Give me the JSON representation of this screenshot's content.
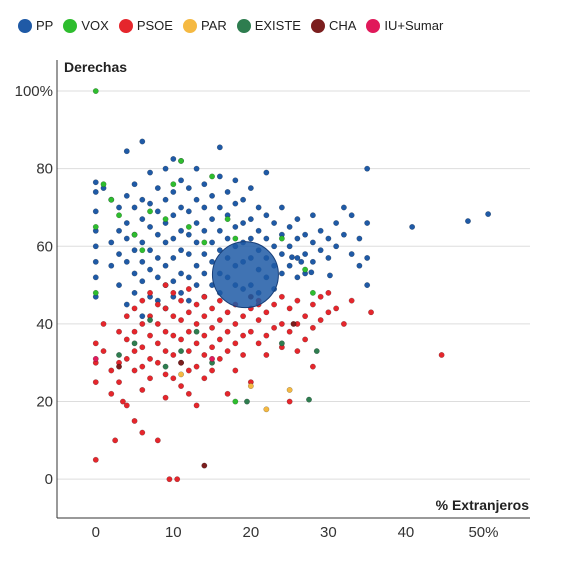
{
  "chart_data": {
    "type": "scatter",
    "xlabel": "% Extranjeros",
    "ylabel": "Derechas",
    "xlim": [
      -5,
      56
    ],
    "ylim": [
      -10,
      108
    ],
    "x_ticks": [
      {
        "value": 0,
        "label": "0"
      },
      {
        "value": 10,
        "label": "10"
      },
      {
        "value": 20,
        "label": "20"
      },
      {
        "value": 30,
        "label": "30"
      },
      {
        "value": 40,
        "label": "40"
      },
      {
        "value": 50,
        "label": "50%"
      }
    ],
    "y_ticks": [
      {
        "value": 0,
        "label": "0"
      },
      {
        "value": 20,
        "label": "20"
      },
      {
        "value": 40,
        "label": "40"
      },
      {
        "value": 60,
        "label": "60"
      },
      {
        "value": 80,
        "label": "80"
      },
      {
        "value": 100,
        "label": "100%"
      }
    ],
    "grid": "horizontal",
    "legend_position": "top",
    "series": [
      {
        "name": "PP",
        "color": "#1f5aa6"
      },
      {
        "name": "VOX",
        "color": "#2ebd2e"
      },
      {
        "name": "PSOE",
        "color": "#e5262c"
      },
      {
        "name": "PAR",
        "color": "#f5b942"
      },
      {
        "name": "EXISTE",
        "color": "#2e7d4f"
      },
      {
        "name": "CHA",
        "color": "#7b1e1e"
      },
      {
        "name": "IU+Sumar",
        "color": "#e0195a"
      }
    ],
    "points": {
      "PP": [
        [
          0,
          76.5
        ],
        [
          0,
          74
        ],
        [
          0,
          69
        ],
        [
          0,
          64
        ],
        [
          0,
          60
        ],
        [
          0,
          56
        ],
        [
          0,
          52
        ],
        [
          0,
          47
        ],
        [
          1,
          75
        ],
        [
          2,
          72
        ],
        [
          2,
          61
        ],
        [
          2,
          55
        ],
        [
          3,
          70
        ],
        [
          3,
          64
        ],
        [
          3,
          58
        ],
        [
          3,
          50
        ],
        [
          4,
          84.5
        ],
        [
          4,
          73
        ],
        [
          4,
          66
        ],
        [
          4,
          62
        ],
        [
          4,
          56
        ],
        [
          4,
          45
        ],
        [
          5,
          76
        ],
        [
          5,
          70
        ],
        [
          5,
          63
        ],
        [
          5,
          59
        ],
        [
          5,
          53
        ],
        [
          5,
          48
        ],
        [
          6,
          87
        ],
        [
          6,
          72
        ],
        [
          6,
          67
        ],
        [
          6,
          61
        ],
        [
          6,
          56
        ],
        [
          6,
          51
        ],
        [
          6,
          42
        ],
        [
          7,
          79
        ],
        [
          7,
          71
        ],
        [
          7,
          65
        ],
        [
          7,
          59
        ],
        [
          7,
          54
        ],
        [
          7,
          47
        ],
        [
          8,
          75
        ],
        [
          8,
          69
        ],
        [
          8,
          63
        ],
        [
          8,
          57
        ],
        [
          8,
          52
        ],
        [
          8,
          46
        ],
        [
          9,
          80
        ],
        [
          9,
          72
        ],
        [
          9,
          66
        ],
        [
          9,
          61
        ],
        [
          9,
          55
        ],
        [
          9,
          50
        ],
        [
          9,
          44
        ],
        [
          10,
          82.5
        ],
        [
          10,
          74
        ],
        [
          10,
          68
        ],
        [
          10,
          62
        ],
        [
          10,
          57
        ],
        [
          10,
          51
        ],
        [
          10,
          47
        ],
        [
          11,
          82
        ],
        [
          11,
          77
        ],
        [
          11,
          70
        ],
        [
          11,
          64
        ],
        [
          11,
          59
        ],
        [
          11,
          53
        ],
        [
          11,
          48
        ],
        [
          12,
          75
        ],
        [
          12,
          69
        ],
        [
          12,
          63
        ],
        [
          12,
          58
        ],
        [
          12,
          52
        ],
        [
          12,
          46
        ],
        [
          13,
          80
        ],
        [
          13,
          72
        ],
        [
          13,
          66
        ],
        [
          13,
          61
        ],
        [
          13,
          55
        ],
        [
          13,
          50
        ],
        [
          14,
          76
        ],
        [
          14,
          70
        ],
        [
          14,
          64
        ],
        [
          14,
          58
        ],
        [
          14,
          53
        ],
        [
          14,
          47
        ],
        [
          15,
          73
        ],
        [
          15,
          67
        ],
        [
          15,
          61
        ],
        [
          15,
          56
        ],
        [
          15,
          50
        ],
        [
          16,
          85.5
        ],
        [
          16,
          78
        ],
        [
          16,
          70
        ],
        [
          16,
          64
        ],
        [
          16,
          59
        ],
        [
          16,
          53
        ],
        [
          16,
          48
        ],
        [
          17,
          74
        ],
        [
          17,
          68
        ],
        [
          17,
          62
        ],
        [
          17,
          57
        ],
        [
          17,
          52
        ],
        [
          18,
          77
        ],
        [
          18,
          71
        ],
        [
          18,
          65
        ],
        [
          18,
          60
        ],
        [
          18,
          55
        ],
        [
          18,
          50
        ],
        [
          19,
          72
        ],
        [
          19,
          66
        ],
        [
          19,
          61
        ],
        [
          19,
          56
        ],
        [
          19,
          49
        ],
        [
          20,
          75
        ],
        [
          20,
          67
        ],
        [
          20,
          62
        ],
        [
          20,
          57
        ],
        [
          20,
          50
        ],
        [
          21,
          70
        ],
        [
          21,
          64
        ],
        [
          21,
          59
        ],
        [
          21,
          54
        ],
        [
          22,
          79
        ],
        [
          22,
          68
        ],
        [
          22,
          62
        ],
        [
          22,
          57
        ],
        [
          22,
          52
        ],
        [
          23,
          66
        ],
        [
          23,
          60
        ],
        [
          23,
          55
        ],
        [
          23,
          49
        ],
        [
          24,
          70
        ],
        [
          24,
          63
        ],
        [
          24,
          58
        ],
        [
          24,
          53
        ],
        [
          25,
          65
        ],
        [
          25,
          60
        ],
        [
          25,
          55
        ],
        [
          26,
          67
        ],
        [
          26,
          62
        ],
        [
          26,
          57
        ],
        [
          26,
          52
        ],
        [
          27,
          63
        ],
        [
          27,
          58
        ],
        [
          27,
          53
        ],
        [
          28,
          68
        ],
        [
          28,
          61
        ],
        [
          28,
          56
        ],
        [
          29,
          64
        ],
        [
          29,
          59
        ],
        [
          30,
          62
        ],
        [
          30,
          57
        ],
        [
          31,
          66
        ],
        [
          31,
          60
        ],
        [
          32,
          70
        ],
        [
          32,
          63
        ],
        [
          33,
          58
        ],
        [
          33,
          68
        ],
        [
          34,
          62
        ],
        [
          34,
          55
        ],
        [
          35,
          80
        ],
        [
          35,
          66
        ],
        [
          35,
          57
        ],
        [
          35,
          50
        ],
        [
          40.8,
          65
        ],
        [
          48,
          66.5
        ],
        [
          50.6,
          68.3
        ],
        [
          26.5,
          56
        ],
        [
          25.3,
          57.2
        ],
        [
          27.8,
          53.3
        ],
        [
          30.2,
          52.5
        ],
        [
          21,
          48
        ]
      ],
      "VOX": [
        [
          0,
          100
        ],
        [
          0,
          65
        ],
        [
          0,
          48
        ],
        [
          1,
          76
        ],
        [
          2,
          72
        ],
        [
          3,
          68
        ],
        [
          5,
          63
        ],
        [
          6,
          59
        ],
        [
          7,
          69
        ],
        [
          9,
          67
        ],
        [
          10,
          76
        ],
        [
          11,
          82
        ],
        [
          12,
          65
        ],
        [
          14,
          61
        ],
        [
          15,
          78
        ],
        [
          17,
          67
        ],
        [
          18,
          62
        ],
        [
          24,
          62
        ],
        [
          27,
          54
        ],
        [
          28,
          48
        ],
        [
          18,
          20
        ]
      ],
      "PSOE": [
        [
          0,
          35
        ],
        [
          0,
          30
        ],
        [
          0,
          25
        ],
        [
          0,
          5
        ],
        [
          1,
          40
        ],
        [
          1,
          33
        ],
        [
          2,
          28
        ],
        [
          2,
          22
        ],
        [
          2.5,
          10
        ],
        [
          3,
          38
        ],
        [
          3,
          30
        ],
        [
          3,
          25
        ],
        [
          3.5,
          20
        ],
        [
          4,
          42
        ],
        [
          4,
          36
        ],
        [
          4,
          31
        ],
        [
          4,
          19
        ],
        [
          5,
          44
        ],
        [
          5,
          38
        ],
        [
          5,
          33
        ],
        [
          5,
          28
        ],
        [
          5,
          15
        ],
        [
          6,
          46
        ],
        [
          6,
          40
        ],
        [
          6,
          34
        ],
        [
          6,
          29
        ],
        [
          6,
          23
        ],
        [
          6,
          12
        ],
        [
          7,
          48
        ],
        [
          7,
          42
        ],
        [
          7,
          37
        ],
        [
          7,
          31
        ],
        [
          7,
          26
        ],
        [
          8,
          45
        ],
        [
          8,
          40
        ],
        [
          8,
          35
        ],
        [
          8,
          30
        ],
        [
          8,
          10
        ],
        [
          9,
          50
        ],
        [
          9,
          44
        ],
        [
          9,
          38
        ],
        [
          9,
          33
        ],
        [
          9,
          27
        ],
        [
          9,
          21
        ],
        [
          9.5,
          0
        ],
        [
          10,
          48
        ],
        [
          10,
          42
        ],
        [
          10,
          37
        ],
        [
          10,
          32
        ],
        [
          10,
          26
        ],
        [
          10.5,
          0
        ],
        [
          11,
          46
        ],
        [
          11,
          41
        ],
        [
          11,
          36
        ],
        [
          11,
          30
        ],
        [
          11,
          24
        ],
        [
          12,
          49
        ],
        [
          12,
          43
        ],
        [
          12,
          38
        ],
        [
          12,
          33
        ],
        [
          12,
          28
        ],
        [
          12,
          22
        ],
        [
          13,
          45
        ],
        [
          13,
          40
        ],
        [
          13,
          35
        ],
        [
          13,
          29
        ],
        [
          13,
          19
        ],
        [
          14,
          47
        ],
        [
          14,
          42
        ],
        [
          14,
          37
        ],
        [
          14,
          32
        ],
        [
          14,
          26
        ],
        [
          15,
          44
        ],
        [
          15,
          39
        ],
        [
          15,
          34
        ],
        [
          15,
          28
        ],
        [
          16,
          46
        ],
        [
          16,
          41
        ],
        [
          16,
          36
        ],
        [
          16,
          31
        ],
        [
          17,
          43
        ],
        [
          17,
          38
        ],
        [
          17,
          33
        ],
        [
          17,
          22
        ],
        [
          18,
          45
        ],
        [
          18,
          40
        ],
        [
          18,
          35
        ],
        [
          18,
          28
        ],
        [
          19,
          42
        ],
        [
          19,
          37
        ],
        [
          19,
          32
        ],
        [
          20,
          44
        ],
        [
          20,
          38
        ],
        [
          20,
          25
        ],
        [
          21,
          46
        ],
        [
          21,
          41
        ],
        [
          21,
          35
        ],
        [
          22,
          43
        ],
        [
          22,
          37
        ],
        [
          22,
          32
        ],
        [
          23,
          45
        ],
        [
          23,
          39
        ],
        [
          24,
          47
        ],
        [
          24,
          40
        ],
        [
          24,
          34
        ],
        [
          25,
          44
        ],
        [
          25,
          38
        ],
        [
          25,
          20
        ],
        [
          26,
          46
        ],
        [
          26,
          40
        ],
        [
          26,
          33
        ],
        [
          27,
          42
        ],
        [
          27,
          36
        ],
        [
          28,
          45
        ],
        [
          28,
          39
        ],
        [
          28,
          29
        ],
        [
          29,
          47
        ],
        [
          29,
          41
        ],
        [
          30,
          48
        ],
        [
          30,
          43
        ],
        [
          31,
          44
        ],
        [
          32,
          40
        ],
        [
          33,
          46
        ],
        [
          35.5,
          43
        ],
        [
          44.6,
          32
        ],
        [
          21,
          45
        ]
      ],
      "PAR": [
        [
          11,
          27
        ],
        [
          20,
          24
        ],
        [
          22,
          18
        ],
        [
          25,
          23
        ]
      ],
      "EXISTE": [
        [
          3,
          32
        ],
        [
          5,
          35
        ],
        [
          7,
          41
        ],
        [
          9,
          29
        ],
        [
          11,
          33
        ],
        [
          13,
          38
        ],
        [
          15,
          30
        ],
        [
          19.5,
          20
        ],
        [
          24,
          35
        ],
        [
          27.5,
          20.5
        ],
        [
          28.5,
          33
        ]
      ],
      "CHA": [
        [
          3,
          29
        ],
        [
          11,
          30
        ],
        [
          14,
          3.5
        ],
        [
          20,
          47
        ],
        [
          25.5,
          40
        ]
      ],
      "IU+Sumar": [
        [
          0,
          31
        ],
        [
          15,
          31
        ]
      ]
    },
    "highlight": {
      "series": "PP",
      "x": 19.3,
      "y": 52.7,
      "r": 33
    }
  }
}
